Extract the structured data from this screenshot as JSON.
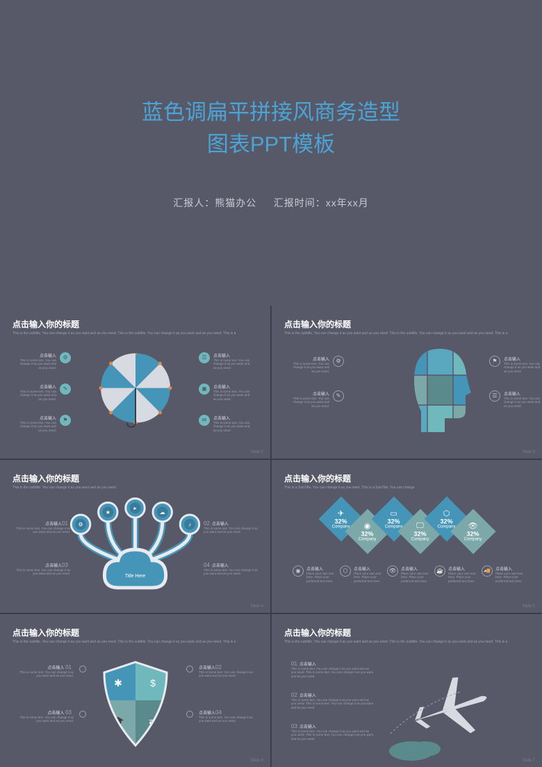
{
  "hero": {
    "title_l1": "蓝色调扁平拼接风商务造型",
    "title_l2": "图表PPT模板",
    "reporter_label": "汇报人：",
    "reporter": "熊猫办公",
    "date_label": "汇报时间：",
    "date": "xx年xx月"
  },
  "common": {
    "slide_title": "点击输入你的标题",
    "subtitle": "This is the subtitle. You can change it as you want and as you need.",
    "subtitle_long": "This is the subtitle. You can change it as you want and as you need. This is the subtitle. You can change it as you want and as you need. This is a",
    "pt_label": "点击输入",
    "pt_text": "This is some text. You can change it as you want and as you need.",
    "pt_text_short": "Place your own text here. Place your preferred text here."
  },
  "colors": {
    "bg": "#575968",
    "accent": "#4595b8",
    "accent2": "#6fb8bb",
    "accent3": "#5a8a8c",
    "accent4": "#7da8aa",
    "orange": "#e8883a",
    "light": "#e8eaf0",
    "text_dim": "#9ea1ad"
  },
  "s2": {
    "slide_num": "Slide 2",
    "umbrella_colors": [
      "#4595b8",
      "#d8dae2",
      "#4595b8",
      "#d8dae2",
      "#4595b8",
      "#d8dae2",
      "#4595b8",
      "#d8dae2"
    ],
    "points": 6
  },
  "s3": {
    "slide_num": "Slide 3",
    "head_colors": [
      "#4595b8",
      "#5aa8c0",
      "#6fb8bb",
      "#7da8aa",
      "#5a8a8c"
    ],
    "points": 4
  },
  "s4": {
    "slide_num": "Slide 4",
    "cloud_label": "Title Here",
    "hub_colors": [
      "#4595b8",
      "#4595b8",
      "#4595b8",
      "#4595b8",
      "#4595b8"
    ],
    "nums": [
      "01",
      "02",
      "03",
      "04"
    ]
  },
  "s5": {
    "slide_num": "Slide 5",
    "subtitle": "This is a SubTitle. You can change it as you want. This is a SubTitle. You can change",
    "diamonds": [
      {
        "c": "#4595b8",
        "pct": "32%",
        "lbl": "Company"
      },
      {
        "c": "#7da8aa",
        "pct": "32%",
        "lbl": "Company"
      },
      {
        "c": "#4595b8",
        "pct": "32%",
        "lbl": "Company"
      },
      {
        "c": "#7da8aa",
        "pct": "32%",
        "lbl": "Company"
      },
      {
        "c": "#4595b8",
        "pct": "32%",
        "lbl": "Company"
      },
      {
        "c": "#7da8aa",
        "pct": "32%",
        "lbl": "Company"
      }
    ],
    "row2_count": 5
  },
  "s6": {
    "slide_num": "Slide 6",
    "shield_colors": [
      "#4595b8",
      "#6fb8bb",
      "#7da8aa",
      "#5a8a8c"
    ],
    "nums": [
      "01",
      "02",
      "03",
      "04"
    ]
  },
  "s7": {
    "slide_num": "Slide 7",
    "plane_color": "#d8dae2",
    "cloud_color": "#5a8a8c",
    "nums": [
      "01",
      "02",
      "03"
    ]
  }
}
